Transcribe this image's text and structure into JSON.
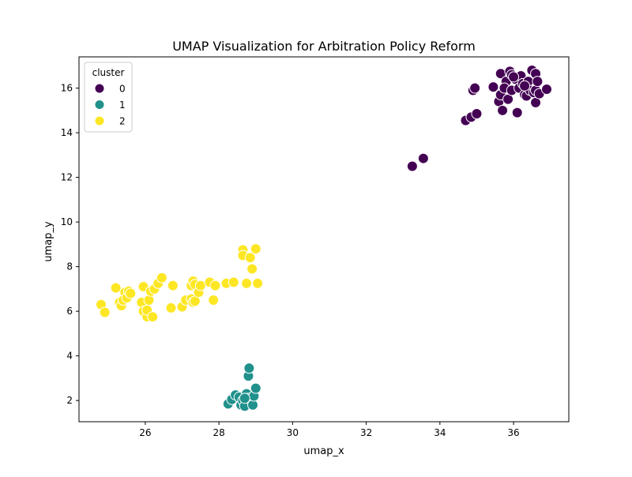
{
  "chart_data": {
    "type": "scatter",
    "title": "UMAP Visualization for Arbitration Policy Reform",
    "xlabel": "umap_x",
    "ylabel": "umap_y",
    "xlim": [
      24.2,
      37.5
    ],
    "ylim": [
      1.05,
      17.4
    ],
    "xticks": [
      26,
      28,
      30,
      32,
      34,
      36
    ],
    "yticks": [
      2,
      4,
      6,
      8,
      10,
      12,
      14,
      16
    ],
    "grid": false,
    "legend": {
      "title": "cluster",
      "placement": "top-left"
    },
    "series": [
      {
        "name": "0",
        "color": "#440154",
        "points": [
          [
            33.25,
            12.5
          ],
          [
            33.55,
            12.85
          ],
          [
            34.7,
            14.55
          ],
          [
            34.85,
            14.7
          ],
          [
            35.0,
            14.85
          ],
          [
            34.9,
            15.9
          ],
          [
            34.95,
            16.0
          ],
          [
            35.45,
            16.05
          ],
          [
            35.6,
            15.4
          ],
          [
            35.65,
            15.7
          ],
          [
            35.7,
            15.0
          ],
          [
            35.65,
            16.65
          ],
          [
            35.8,
            16.3
          ],
          [
            35.75,
            16.0
          ],
          [
            35.85,
            15.5
          ],
          [
            35.9,
            16.75
          ],
          [
            35.95,
            16.6
          ],
          [
            35.95,
            15.9
          ],
          [
            36.05,
            16.4
          ],
          [
            36.1,
            14.9
          ],
          [
            36.15,
            16.0
          ],
          [
            36.2,
            16.55
          ],
          [
            36.25,
            16.2
          ],
          [
            36.3,
            15.7
          ],
          [
            36.35,
            15.65
          ],
          [
            36.4,
            16.3
          ],
          [
            36.45,
            15.9
          ],
          [
            36.5,
            16.8
          ],
          [
            36.55,
            15.8
          ],
          [
            36.6,
            16.65
          ],
          [
            36.6,
            15.9
          ],
          [
            36.65,
            16.3
          ],
          [
            36.6,
            15.35
          ],
          [
            36.7,
            15.75
          ],
          [
            36.9,
            15.95
          ],
          [
            36.3,
            16.1
          ],
          [
            36.0,
            16.5
          ]
        ]
      },
      {
        "name": "1",
        "color": "#21918c",
        "points": [
          [
            28.25,
            1.85
          ],
          [
            28.35,
            2.05
          ],
          [
            28.45,
            2.25
          ],
          [
            28.55,
            2.15
          ],
          [
            28.6,
            1.8
          ],
          [
            28.65,
            2.0
          ],
          [
            28.7,
            1.75
          ],
          [
            28.75,
            2.3
          ],
          [
            28.8,
            2.1
          ],
          [
            28.8,
            3.1
          ],
          [
            28.82,
            3.45
          ],
          [
            28.9,
            2.0
          ],
          [
            28.92,
            1.8
          ],
          [
            28.95,
            2.2
          ],
          [
            29.0,
            2.55
          ],
          [
            28.7,
            2.1
          ]
        ]
      },
      {
        "name": "2",
        "color": "#fde725",
        "points": [
          [
            24.8,
            6.3
          ],
          [
            24.9,
            5.95
          ],
          [
            25.2,
            7.05
          ],
          [
            25.3,
            6.4
          ],
          [
            25.35,
            6.25
          ],
          [
            25.4,
            6.5
          ],
          [
            25.45,
            6.85
          ],
          [
            25.5,
            6.6
          ],
          [
            25.55,
            6.9
          ],
          [
            25.6,
            6.8
          ],
          [
            25.9,
            6.4
          ],
          [
            25.95,
            7.1
          ],
          [
            25.95,
            6.0
          ],
          [
            26.05,
            5.75
          ],
          [
            26.05,
            6.05
          ],
          [
            26.1,
            6.5
          ],
          [
            26.15,
            6.9
          ],
          [
            26.2,
            5.75
          ],
          [
            26.25,
            7.0
          ],
          [
            26.35,
            7.25
          ],
          [
            26.45,
            7.5
          ],
          [
            26.7,
            6.15
          ],
          [
            26.75,
            7.15
          ],
          [
            27.0,
            6.2
          ],
          [
            27.1,
            6.5
          ],
          [
            27.25,
            6.55
          ],
          [
            27.25,
            7.15
          ],
          [
            27.3,
            6.4
          ],
          [
            27.3,
            7.35
          ],
          [
            27.35,
            6.45
          ],
          [
            27.35,
            7.2
          ],
          [
            27.45,
            6.85
          ],
          [
            27.5,
            7.15
          ],
          [
            27.75,
            7.3
          ],
          [
            27.85,
            6.5
          ],
          [
            27.9,
            7.15
          ],
          [
            28.2,
            7.25
          ],
          [
            28.4,
            7.3
          ],
          [
            28.65,
            8.75
          ],
          [
            28.65,
            8.5
          ],
          [
            28.75,
            7.25
          ],
          [
            28.85,
            8.4
          ],
          [
            28.9,
            7.9
          ],
          [
            29.0,
            8.8
          ],
          [
            29.05,
            7.25
          ]
        ]
      }
    ]
  }
}
